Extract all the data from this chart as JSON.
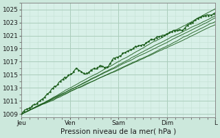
{
  "bg_color": "#cce8dc",
  "plot_bg_color": "#d8f0e8",
  "grid_major_color": "#aaccbb",
  "grid_minor_color": "#c4e0d4",
  "line_dark": "#1a5c1a",
  "ylim": [
    1008.5,
    1026.0
  ],
  "yticks": [
    1009,
    1011,
    1013,
    1015,
    1017,
    1019,
    1021,
    1023,
    1025
  ],
  "xlabel": "Pression niveau de la mer( hPa )",
  "xlabel_fontsize": 7.5,
  "tick_fontsize": 6.5,
  "day_labels": [
    "Jeu",
    "Ven",
    "Sam",
    "Dim",
    "L"
  ],
  "day_positions": [
    0,
    0.25,
    0.5,
    0.75,
    1.0
  ]
}
